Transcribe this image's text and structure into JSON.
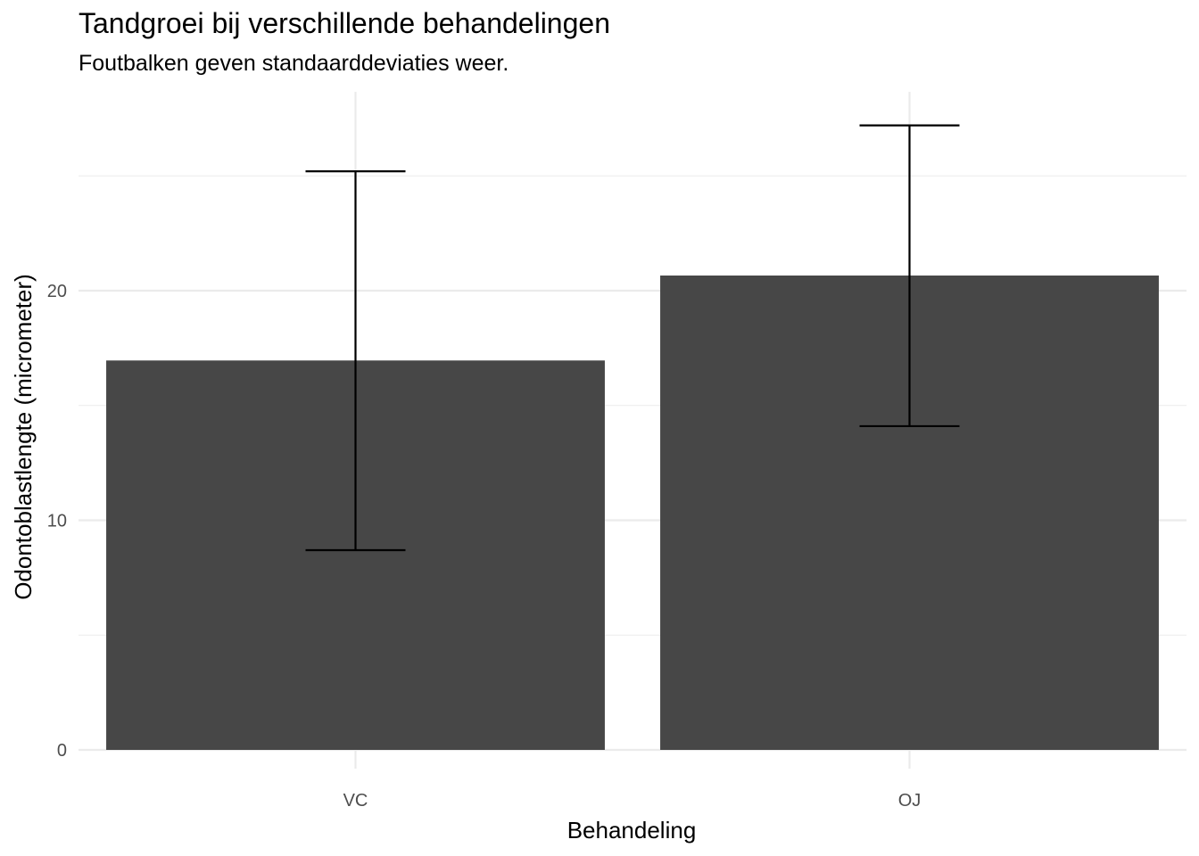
{
  "chart_data": {
    "type": "bar",
    "title": "Tandgroei bij verschillende behandelingen",
    "subtitle": "Foutbalken geven standaarddeviaties weer.",
    "xlabel": "Behandeling",
    "ylabel": "Odontoblastlengte (micrometer)",
    "categories": [
      "VC",
      "OJ"
    ],
    "values": [
      16.96,
      20.66
    ],
    "error_low": [
      8.7,
      14.1
    ],
    "error_high": [
      25.2,
      27.2
    ],
    "ylim": [
      0,
      28.9
    ],
    "yticks": [
      0,
      10,
      20
    ],
    "grid": true,
    "legend": "none",
    "colors": {
      "bar": "#474747",
      "error": "#000000",
      "grid": "#ebebeb"
    }
  }
}
